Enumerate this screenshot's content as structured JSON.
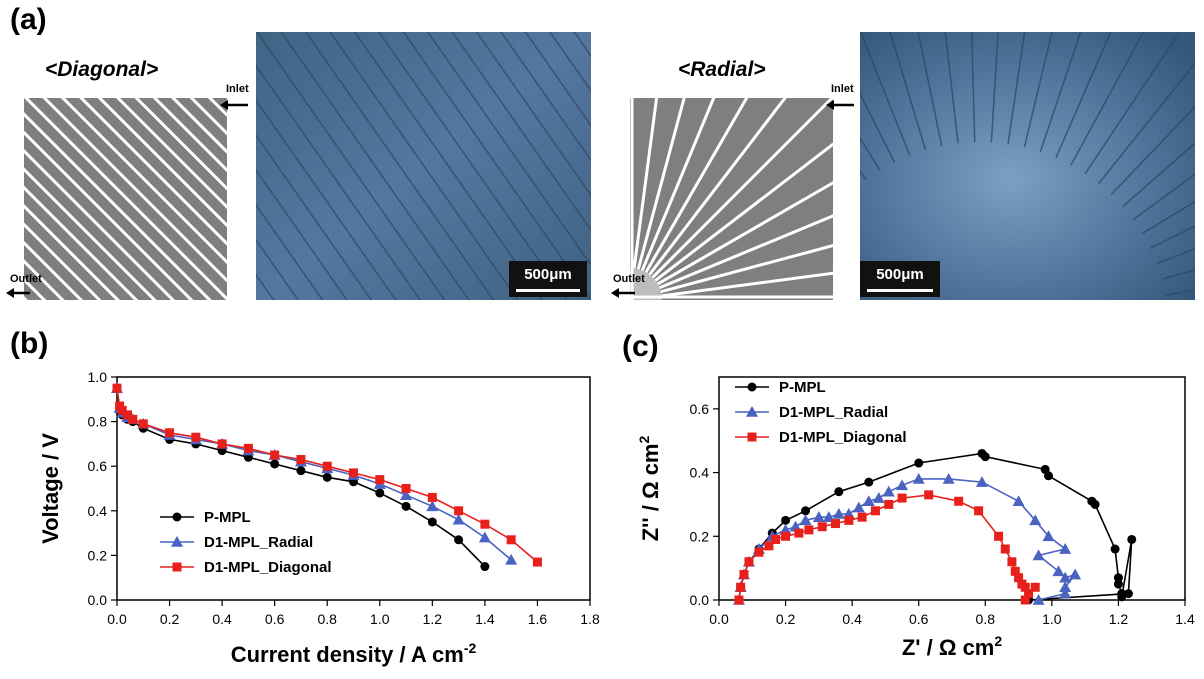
{
  "panel_a": {
    "label": "(a)",
    "diagonal": {
      "title": "<Diagonal>",
      "inlet": "Inlet",
      "outlet": "Outlet",
      "scalebar": "500μm"
    },
    "radial": {
      "title": "<Radial>",
      "inlet": "Inlet",
      "outlet": "Outlet",
      "scalebar": "500μm"
    }
  },
  "colors": {
    "p_mpl": "#000000",
    "radial": "#4a62c0",
    "diagonal": "#e8201c",
    "photo": "#4a6c8c",
    "pattern_gray": "#7f7f7f"
  },
  "chart_data": [
    {
      "type": "line",
      "panel_label": "(b)",
      "xlabel": "Current density / A cm",
      "xlabel_sup": "-2",
      "ylabel": "Voltage / V",
      "xlim": [
        0.0,
        1.8
      ],
      "ylim": [
        0.0,
        1.0
      ],
      "xticks": [
        "0.0",
        "0.2",
        "0.4",
        "0.6",
        "0.8",
        "1.0",
        "1.2",
        "1.4",
        "1.6",
        "1.8"
      ],
      "yticks": [
        "0.0",
        "0.2",
        "0.4",
        "0.6",
        "0.8",
        "1.0"
      ],
      "legend_position": "bottom-left",
      "series": [
        {
          "name": "P-MPL",
          "marker": "circle",
          "color": "#000000",
          "points": [
            [
              0.0,
              0.95
            ],
            [
              0.01,
              0.85
            ],
            [
              0.02,
              0.83
            ],
            [
              0.04,
              0.81
            ],
            [
              0.06,
              0.8
            ],
            [
              0.1,
              0.77
            ],
            [
              0.2,
              0.72
            ],
            [
              0.3,
              0.7
            ],
            [
              0.4,
              0.67
            ],
            [
              0.5,
              0.64
            ],
            [
              0.6,
              0.61
            ],
            [
              0.7,
              0.58
            ],
            [
              0.8,
              0.55
            ],
            [
              0.9,
              0.53
            ],
            [
              1.0,
              0.48
            ],
            [
              1.1,
              0.42
            ],
            [
              1.2,
              0.35
            ],
            [
              1.3,
              0.27
            ],
            [
              1.4,
              0.15
            ]
          ]
        },
        {
          "name": "D1-MPL_Radial",
          "marker": "triangle",
          "color": "#4a62c0",
          "points": [
            [
              0.0,
              0.95
            ],
            [
              0.01,
              0.86
            ],
            [
              0.02,
              0.84
            ],
            [
              0.04,
              0.82
            ],
            [
              0.06,
              0.81
            ],
            [
              0.1,
              0.79
            ],
            [
              0.2,
              0.74
            ],
            [
              0.3,
              0.72
            ],
            [
              0.4,
              0.7
            ],
            [
              0.5,
              0.67
            ],
            [
              0.6,
              0.65
            ],
            [
              0.7,
              0.62
            ],
            [
              0.8,
              0.59
            ],
            [
              0.9,
              0.56
            ],
            [
              1.0,
              0.52
            ],
            [
              1.1,
              0.47
            ],
            [
              1.2,
              0.42
            ],
            [
              1.3,
              0.36
            ],
            [
              1.4,
              0.28
            ],
            [
              1.5,
              0.18
            ]
          ]
        },
        {
          "name": "D1-MPL_Diagonal",
          "marker": "square",
          "color": "#e8201c",
          "points": [
            [
              0.0,
              0.95
            ],
            [
              0.01,
              0.87
            ],
            [
              0.02,
              0.85
            ],
            [
              0.04,
              0.83
            ],
            [
              0.06,
              0.81
            ],
            [
              0.1,
              0.79
            ],
            [
              0.2,
              0.75
            ],
            [
              0.3,
              0.73
            ],
            [
              0.4,
              0.7
            ],
            [
              0.5,
              0.68
            ],
            [
              0.6,
              0.65
            ],
            [
              0.7,
              0.63
            ],
            [
              0.8,
              0.6
            ],
            [
              0.9,
              0.57
            ],
            [
              1.0,
              0.54
            ],
            [
              1.1,
              0.5
            ],
            [
              1.2,
              0.46
            ],
            [
              1.3,
              0.4
            ],
            [
              1.4,
              0.34
            ],
            [
              1.5,
              0.27
            ],
            [
              1.6,
              0.17
            ]
          ]
        }
      ]
    },
    {
      "type": "scatter",
      "panel_label": "(c)",
      "xlabel": "Z' / Ω cm",
      "xlabel_sup": "2",
      "ylabel": "Z'' / Ω cm",
      "ylabel_sup": "2",
      "xlim": [
        0.0,
        1.4
      ],
      "ylim": [
        0.0,
        0.7
      ],
      "xticks": [
        "0.0",
        "0.2",
        "0.4",
        "0.6",
        "0.8",
        "1.0",
        "1.2",
        "1.4"
      ],
      "yticks": [
        "0.0",
        "0.2",
        "0.4",
        "0.6"
      ],
      "legend_position": "top-left",
      "series": [
        {
          "name": "P-MPL",
          "marker": "circle",
          "color": "#000000",
          "points": [
            [
              0.06,
              0.0
            ],
            [
              0.065,
              0.04
            ],
            [
              0.075,
              0.08
            ],
            [
              0.09,
              0.12
            ],
            [
              0.12,
              0.16
            ],
            [
              0.16,
              0.21
            ],
            [
              0.2,
              0.25
            ],
            [
              0.26,
              0.28
            ],
            [
              0.36,
              0.34
            ],
            [
              0.45,
              0.37
            ],
            [
              0.6,
              0.43
            ],
            [
              0.79,
              0.46
            ],
            [
              0.8,
              0.45
            ],
            [
              0.98,
              0.41
            ],
            [
              0.99,
              0.39
            ],
            [
              1.12,
              0.31
            ],
            [
              1.13,
              0.3
            ],
            [
              1.19,
              0.16
            ],
            [
              1.2,
              0.07
            ],
            [
              1.2,
              0.05
            ],
            [
              1.21,
              0.02
            ],
            [
              1.21,
              0.01
            ],
            [
              1.24,
              0.19
            ],
            [
              1.23,
              0.02
            ],
            [
              0.93,
              0.0
            ]
          ]
        },
        {
          "name": "D1-MPL_Radial",
          "marker": "triangle",
          "color": "#4a62c0",
          "points": [
            [
              0.06,
              0.0
            ],
            [
              0.065,
              0.04
            ],
            [
              0.075,
              0.08
            ],
            [
              0.09,
              0.12
            ],
            [
              0.12,
              0.16
            ],
            [
              0.16,
              0.2
            ],
            [
              0.2,
              0.22
            ],
            [
              0.23,
              0.23
            ],
            [
              0.26,
              0.25
            ],
            [
              0.3,
              0.26
            ],
            [
              0.33,
              0.26
            ],
            [
              0.36,
              0.27
            ],
            [
              0.39,
              0.27
            ],
            [
              0.42,
              0.29
            ],
            [
              0.45,
              0.31
            ],
            [
              0.48,
              0.32
            ],
            [
              0.51,
              0.34
            ],
            [
              0.55,
              0.36
            ],
            [
              0.6,
              0.38
            ],
            [
              0.69,
              0.38
            ],
            [
              0.79,
              0.37
            ],
            [
              0.9,
              0.31
            ],
            [
              0.95,
              0.25
            ],
            [
              0.99,
              0.2
            ],
            [
              1.04,
              0.16
            ],
            [
              0.96,
              0.14
            ],
            [
              1.02,
              0.09
            ],
            [
              1.04,
              0.07
            ],
            [
              1.07,
              0.08
            ],
            [
              1.04,
              0.04
            ],
            [
              1.04,
              0.02
            ],
            [
              0.96,
              0.0
            ]
          ]
        },
        {
          "name": "D1-MPL_Diagonal",
          "marker": "square",
          "color": "#e8201c",
          "points": [
            [
              0.06,
              0.0
            ],
            [
              0.065,
              0.04
            ],
            [
              0.075,
              0.08
            ],
            [
              0.09,
              0.12
            ],
            [
              0.12,
              0.15
            ],
            [
              0.15,
              0.17
            ],
            [
              0.17,
              0.19
            ],
            [
              0.2,
              0.2
            ],
            [
              0.24,
              0.21
            ],
            [
              0.27,
              0.22
            ],
            [
              0.31,
              0.23
            ],
            [
              0.35,
              0.24
            ],
            [
              0.39,
              0.25
            ],
            [
              0.43,
              0.26
            ],
            [
              0.47,
              0.28
            ],
            [
              0.51,
              0.3
            ],
            [
              0.55,
              0.32
            ],
            [
              0.63,
              0.33
            ],
            [
              0.72,
              0.31
            ],
            [
              0.78,
              0.28
            ],
            [
              0.84,
              0.2
            ],
            [
              0.86,
              0.16
            ],
            [
              0.88,
              0.12
            ],
            [
              0.89,
              0.09
            ],
            [
              0.9,
              0.07
            ],
            [
              0.91,
              0.05
            ],
            [
              0.92,
              0.04
            ],
            [
              0.93,
              0.02
            ],
            [
              0.95,
              0.04
            ],
            [
              0.92,
              0.0
            ]
          ]
        }
      ]
    }
  ]
}
